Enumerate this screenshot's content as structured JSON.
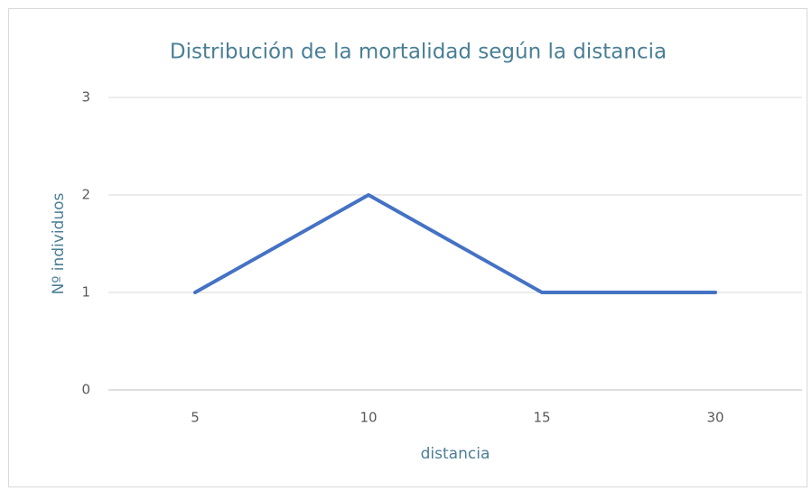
{
  "chart_data": {
    "type": "line",
    "title": "Distribución de la mortalidad según la distancia",
    "xlabel": "distancia",
    "ylabel": "Nº individuos",
    "categories": [
      "5",
      "10",
      "15",
      "30"
    ],
    "values": [
      1,
      2,
      1,
      1
    ],
    "color": "#4472c4",
    "ylim": [
      0,
      3
    ],
    "yticks": [
      0,
      1,
      2,
      3
    ],
    "grid": true
  }
}
